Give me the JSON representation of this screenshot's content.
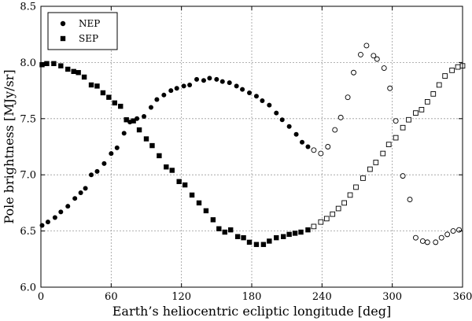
{
  "chart_data": {
    "type": "scatter",
    "xlabel": "Earth’s heliocentric ecliptic longitude [deg]",
    "ylabel": "Pole brightness [MJy/sr]",
    "xlim": [
      0,
      360
    ],
    "ylim": [
      6.0,
      8.5
    ],
    "xticks": [
      0,
      60,
      120,
      180,
      240,
      300,
      360
    ],
    "yticks": [
      6.0,
      6.5,
      7.0,
      7.5,
      8.0,
      8.5
    ],
    "xtick_labels": [
      "0",
      "60",
      "120",
      "180",
      "240",
      "300",
      "360"
    ],
    "ytick_labels": [
      "6.0",
      "6.5",
      "7.0",
      "7.5",
      "8.0",
      "8.5"
    ],
    "grid": true,
    "legend_position": "top-left",
    "series": [
      {
        "name": "NEP",
        "marker": "circle",
        "color": "#000000",
        "points": [
          [
            1,
            6.55
          ],
          [
            6,
            6.58
          ],
          [
            12,
            6.62
          ],
          [
            17,
            6.67
          ],
          [
            23,
            6.72
          ],
          [
            29,
            6.79
          ],
          [
            34,
            6.84
          ],
          [
            38,
            6.88
          ],
          [
            43,
            7.0
          ],
          [
            48,
            7.03
          ],
          [
            54,
            7.1
          ],
          [
            60,
            7.19
          ],
          [
            65,
            7.24
          ],
          [
            71,
            7.37
          ],
          [
            76,
            7.47
          ],
          [
            82,
            7.5
          ],
          [
            88,
            7.52
          ],
          [
            94,
            7.6
          ],
          [
            99,
            7.67
          ],
          [
            105,
            7.71
          ],
          [
            111,
            7.75
          ],
          [
            116,
            7.77
          ],
          [
            122,
            7.79
          ],
          [
            127,
            7.8
          ],
          [
            133,
            7.85
          ],
          [
            139,
            7.84
          ],
          [
            144,
            7.86
          ],
          [
            150,
            7.85
          ],
          [
            155,
            7.83
          ],
          [
            161,
            7.82
          ],
          [
            167,
            7.79
          ],
          [
            172,
            7.76
          ],
          [
            178,
            7.73
          ],
          [
            184,
            7.7
          ],
          [
            189,
            7.66
          ],
          [
            195,
            7.62
          ],
          [
            201,
            7.55
          ],
          [
            206,
            7.49
          ],
          [
            212,
            7.43
          ],
          [
            218,
            7.36
          ],
          [
            223,
            7.29
          ],
          [
            228,
            7.25
          ]
        ]
      },
      {
        "name": "NEP (open)",
        "marker": "circle-open",
        "color": "#000000",
        "points": [
          [
            233,
            7.22
          ],
          [
            239,
            7.19
          ],
          [
            245,
            7.25
          ],
          [
            251,
            7.4
          ],
          [
            256,
            7.51
          ],
          [
            262,
            7.69
          ],
          [
            267,
            7.91
          ],
          [
            273,
            8.07
          ],
          [
            278,
            8.15
          ],
          [
            284,
            8.06
          ],
          [
            287,
            8.03
          ],
          [
            293,
            7.95
          ],
          [
            298,
            7.77
          ],
          [
            303,
            7.48
          ],
          [
            309,
            6.99
          ],
          [
            315,
            6.78
          ],
          [
            320,
            6.44
          ],
          [
            326,
            6.41
          ],
          [
            330,
            6.4
          ],
          [
            337,
            6.4
          ],
          [
            342,
            6.44
          ],
          [
            347,
            6.47
          ],
          [
            352,
            6.5
          ],
          [
            357,
            6.51
          ]
        ]
      },
      {
        "name": "SEP",
        "marker": "square",
        "color": "#000000",
        "points": [
          [
            1,
            7.98
          ],
          [
            5,
            7.99
          ],
          [
            11,
            7.99
          ],
          [
            17,
            7.97
          ],
          [
            23,
            7.94
          ],
          [
            28,
            7.92
          ],
          [
            32,
            7.91
          ],
          [
            37,
            7.87
          ],
          [
            43,
            7.8
          ],
          [
            48,
            7.79
          ],
          [
            53,
            7.73
          ],
          [
            58,
            7.69
          ],
          [
            63,
            7.64
          ],
          [
            68,
            7.61
          ],
          [
            73,
            7.49
          ],
          [
            79,
            7.48
          ],
          [
            84,
            7.4
          ],
          [
            90,
            7.32
          ],
          [
            95,
            7.26
          ],
          [
            101,
            7.17
          ],
          [
            107,
            7.07
          ],
          [
            112,
            7.04
          ],
          [
            118,
            6.94
          ],
          [
            123,
            6.91
          ],
          [
            129,
            6.82
          ],
          [
            135,
            6.75
          ],
          [
            141,
            6.68
          ],
          [
            147,
            6.6
          ],
          [
            152,
            6.52
          ],
          [
            157,
            6.49
          ],
          [
            162,
            6.51
          ],
          [
            168,
            6.45
          ],
          [
            173,
            6.44
          ],
          [
            178,
            6.4
          ],
          [
            184,
            6.38
          ],
          [
            190,
            6.38
          ],
          [
            195,
            6.41
          ],
          [
            201,
            6.44
          ],
          [
            207,
            6.45
          ],
          [
            212,
            6.47
          ],
          [
            217,
            6.48
          ],
          [
            222,
            6.49
          ],
          [
            228,
            6.51
          ]
        ]
      },
      {
        "name": "SEP (open)",
        "marker": "square-open",
        "color": "#000000",
        "points": [
          [
            233,
            6.54
          ],
          [
            239,
            6.58
          ],
          [
            244,
            6.61
          ],
          [
            249,
            6.65
          ],
          [
            254,
            6.7
          ],
          [
            259,
            6.75
          ],
          [
            264,
            6.82
          ],
          [
            269,
            6.89
          ],
          [
            275,
            6.97
          ],
          [
            281,
            7.05
          ],
          [
            286,
            7.11
          ],
          [
            292,
            7.19
          ],
          [
            297,
            7.27
          ],
          [
            303,
            7.33
          ],
          [
            309,
            7.42
          ],
          [
            314,
            7.49
          ],
          [
            320,
            7.55
          ],
          [
            325,
            7.58
          ],
          [
            330,
            7.65
          ],
          [
            335,
            7.72
          ],
          [
            340,
            7.8
          ],
          [
            345,
            7.88
          ],
          [
            351,
            7.93
          ],
          [
            356,
            7.96
          ],
          [
            360,
            7.97
          ]
        ]
      }
    ],
    "legend": [
      {
        "label": "NEP",
        "marker": "circle"
      },
      {
        "label": "SEP",
        "marker": "square"
      }
    ]
  }
}
